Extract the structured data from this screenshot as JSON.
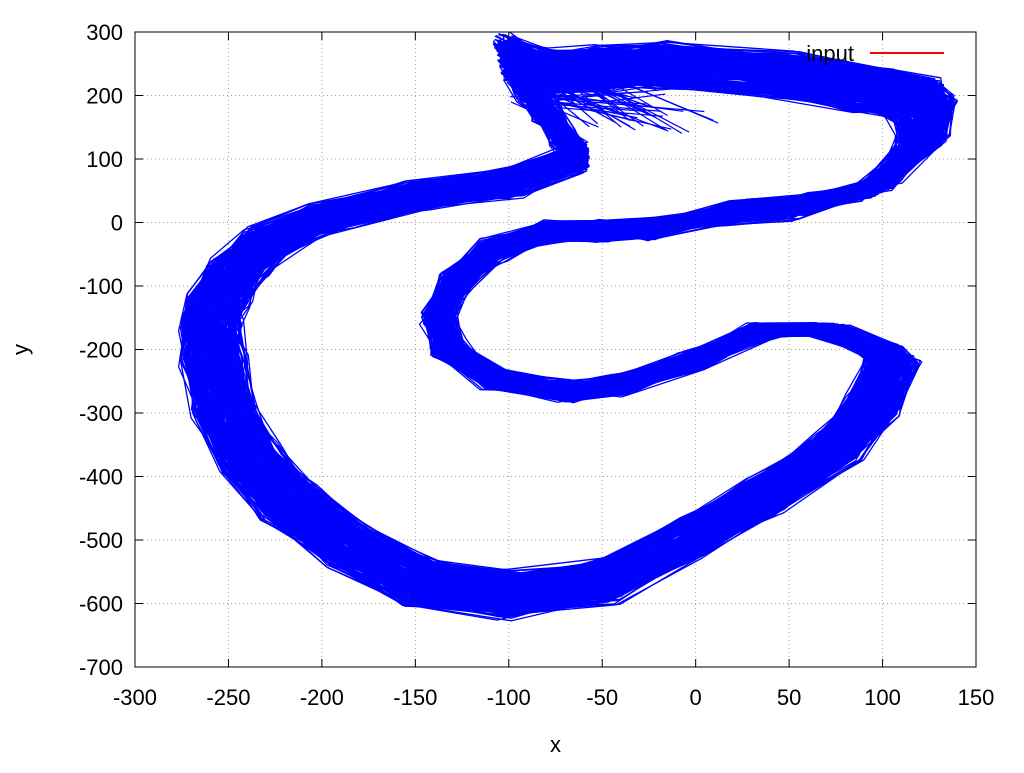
{
  "chart_data": {
    "type": "line",
    "title": "",
    "xlabel": "x",
    "ylabel": "y",
    "xlim": [
      -300,
      150
    ],
    "ylim": [
      -700,
      300
    ],
    "xticks": [
      -300,
      -250,
      -200,
      -150,
      -100,
      -50,
      0,
      50,
      100,
      150
    ],
    "yticks": [
      -700,
      -600,
      -500,
      -400,
      -300,
      -200,
      -100,
      0,
      100,
      200,
      300
    ],
    "grid": true,
    "legend_position": "top-right",
    "series": [
      {
        "name": "input",
        "color": "#ff0000",
        "points": []
      },
      {
        "name": "",
        "color": "#0000ff",
        "style": "dense-overlapping-trajectory",
        "points": [
          [
            -102,
            272
          ],
          [
            -95,
            240
          ],
          [
            -85,
            200
          ],
          [
            -75,
            160
          ],
          [
            -62,
            110
          ],
          [
            -100,
            70
          ],
          [
            -150,
            50
          ],
          [
            -200,
            15
          ],
          [
            -230,
            -20
          ],
          [
            -250,
            -70
          ],
          [
            -262,
            -120
          ],
          [
            -266,
            -160
          ],
          [
            -264,
            -220
          ],
          [
            -258,
            -300
          ],
          [
            -245,
            -380
          ],
          [
            -222,
            -450
          ],
          [
            -190,
            -520
          ],
          [
            -150,
            -580
          ],
          [
            -100,
            -600
          ],
          [
            -45,
            -575
          ],
          [
            0,
            -505
          ],
          [
            40,
            -440
          ],
          [
            80,
            -360
          ],
          [
            100,
            -290
          ],
          [
            110,
            -220
          ],
          [
            102,
            -200
          ],
          [
            75,
            -170
          ],
          [
            40,
            -170
          ],
          [
            0,
            -220
          ],
          [
            -40,
            -260
          ],
          [
            -70,
            -270
          ],
          [
            -110,
            -250
          ],
          [
            -135,
            -200
          ],
          [
            -140,
            -150
          ],
          [
            -130,
            -90
          ],
          [
            -110,
            -40
          ],
          [
            -80,
            -10
          ],
          [
            -50,
            -10
          ],
          [
            -20,
            -5
          ],
          [
            20,
            20
          ],
          [
            60,
            30
          ],
          [
            100,
            60
          ],
          [
            125,
            130
          ],
          [
            130,
            180
          ],
          [
            122,
            205
          ],
          [
            100,
            220
          ],
          [
            50,
            245
          ],
          [
            -20,
            260
          ],
          [
            -50,
            255
          ],
          [
            -80,
            250
          ],
          [
            -102,
            272
          ]
        ]
      }
    ]
  }
}
